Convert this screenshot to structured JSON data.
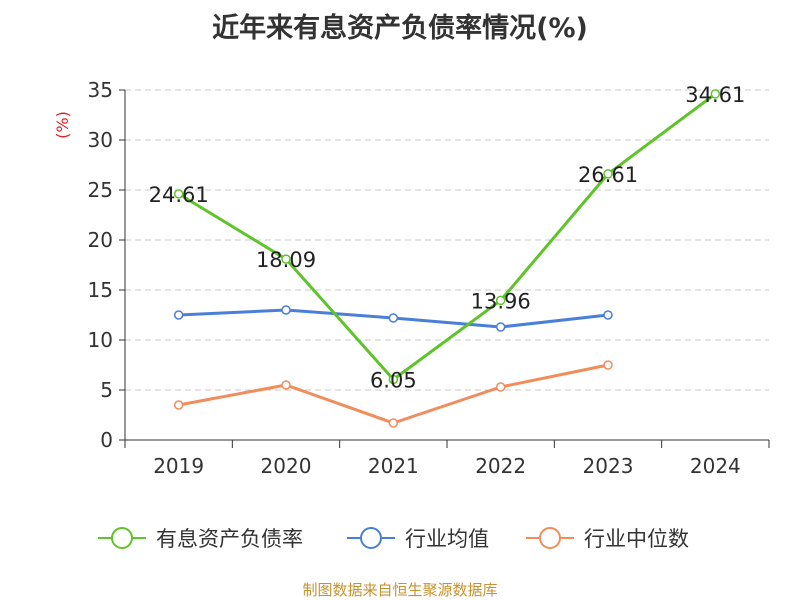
{
  "chart_data": {
    "type": "line",
    "title": "近年来有息资产负债率情况(%)",
    "ylabel": "(%)",
    "xlabel": "",
    "categories": [
      "2019",
      "2020",
      "2021",
      "2022",
      "2023",
      "2024"
    ],
    "ylim": [
      0,
      35
    ],
    "yticks": [
      0,
      5,
      10,
      15,
      20,
      25,
      30,
      35
    ],
    "grid": true,
    "legend_position": "bottom",
    "series": [
      {
        "name": "有息资产负债率",
        "color": "#5ec42a",
        "labels": true,
        "values": [
          24.61,
          18.09,
          6.05,
          13.96,
          26.61,
          34.61
        ]
      },
      {
        "name": "行业均值",
        "color": "#4a7fd8",
        "labels": false,
        "values": [
          12.5,
          13.0,
          12.2,
          11.3,
          12.5,
          null
        ]
      },
      {
        "name": "行业中位数",
        "color": "#f28c5a",
        "labels": false,
        "values": [
          3.5,
          5.5,
          1.7,
          5.3,
          7.5,
          null
        ]
      }
    ]
  },
  "source": "制图数据来自恒生聚源数据库"
}
